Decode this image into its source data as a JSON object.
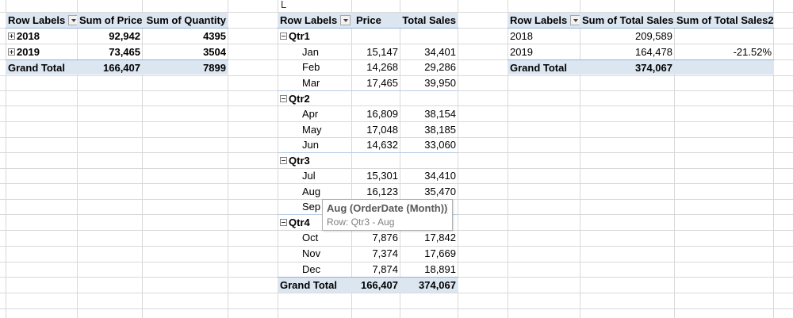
{
  "column_letter": "L",
  "pivot1": {
    "headers": [
      "Row Labels",
      "Sum of Price",
      "Sum of Quantity"
    ],
    "rows": [
      {
        "label": "2018",
        "price": "92,942",
        "quantity": "4395"
      },
      {
        "label": "2019",
        "price": "73,465",
        "quantity": "3504"
      }
    ],
    "total": {
      "label": "Grand Total",
      "price": "166,407",
      "quantity": "7899"
    }
  },
  "pivot2": {
    "headers": [
      "Row Labels",
      "Price",
      "Total Sales"
    ],
    "groups": [
      {
        "label": "Qtr1",
        "rows": [
          {
            "month": "Jan",
            "price": "15,147",
            "sales": "34,401"
          },
          {
            "month": "Feb",
            "price": "14,268",
            "sales": "29,286"
          },
          {
            "month": "Mar",
            "price": "17,465",
            "sales": "39,950"
          }
        ]
      },
      {
        "label": "Qtr2",
        "rows": [
          {
            "month": "Apr",
            "price": "16,809",
            "sales": "38,154"
          },
          {
            "month": "May",
            "price": "17,048",
            "sales": "38,185"
          },
          {
            "month": "Jun",
            "price": "14,632",
            "sales": "33,060"
          }
        ]
      },
      {
        "label": "Qtr3",
        "rows": [
          {
            "month": "Jul",
            "price": "15,301",
            "sales": "34,410"
          },
          {
            "month": "Aug",
            "price": "16,123",
            "sales": "35,470"
          },
          {
            "month": "Sep",
            "price": "",
            "sales": ""
          }
        ]
      },
      {
        "label": "Qtr4",
        "rows": [
          {
            "month": "Oct",
            "price": "7,876",
            "sales": "17,842"
          },
          {
            "month": "Nov",
            "price": "7,374",
            "sales": "17,669"
          },
          {
            "month": "Dec",
            "price": "7,874",
            "sales": "18,891"
          }
        ]
      }
    ],
    "total": {
      "label": "Grand Total",
      "price": "166,407",
      "sales": "374,067"
    }
  },
  "pivot3": {
    "headers": [
      "Row Labels",
      "Sum of Total Sales",
      "Sum of Total Sales2"
    ],
    "rows": [
      {
        "label": "2018",
        "sales": "209,589",
        "sales2": ""
      },
      {
        "label": "2019",
        "sales": "164,478",
        "sales2": "-21.52%"
      }
    ],
    "total": {
      "label": "Grand Total",
      "sales": "374,067",
      "sales2": ""
    }
  },
  "tooltip": {
    "title": "Aug (OrderDate (Month)))",
    "subtitle": "Row: Qtr3 - Aug"
  },
  "colors": {
    "header_fill": "#dce6f1",
    "header_border": "#95b3d7",
    "gridline": "#d9d9d9"
  }
}
